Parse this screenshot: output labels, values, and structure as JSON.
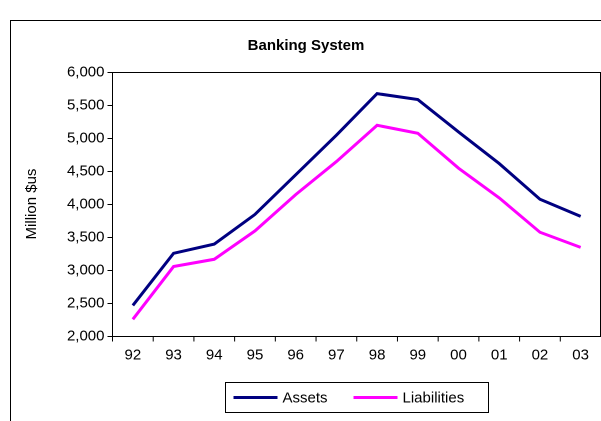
{
  "chart_data": {
    "type": "line",
    "title": "Banking System",
    "y_label": "Million $us",
    "categories": [
      "92",
      "93",
      "94",
      "95",
      "96",
      "97",
      "98",
      "99",
      "00",
      "01",
      "02",
      "03"
    ],
    "series": [
      {
        "name": "Assets",
        "color": "#000080",
        "values": [
          2470,
          3260,
          3400,
          3850,
          4450,
          5050,
          5680,
          5590,
          5100,
          4620,
          4080,
          3820
        ]
      },
      {
        "name": "Liabilities",
        "color": "#ff00ff",
        "values": [
          2260,
          3060,
          3170,
          3600,
          4150,
          4650,
          5200,
          5080,
          4550,
          4100,
          3580,
          3350
        ]
      }
    ],
    "ylim": [
      2000,
      6000
    ],
    "yticks": [
      {
        "value": 2000,
        "label": "2,000"
      },
      {
        "value": 2500,
        "label": "2,500"
      },
      {
        "value": 3000,
        "label": "3,000"
      },
      {
        "value": 3500,
        "label": "3,500"
      },
      {
        "value": 4000,
        "label": "4,000"
      },
      {
        "value": 4500,
        "label": "4,500"
      },
      {
        "value": 5000,
        "label": "5,000"
      },
      {
        "value": 5500,
        "label": "5,500"
      },
      {
        "value": 6000,
        "label": "6,000"
      }
    ],
    "grid": false,
    "legend": "bottom"
  }
}
